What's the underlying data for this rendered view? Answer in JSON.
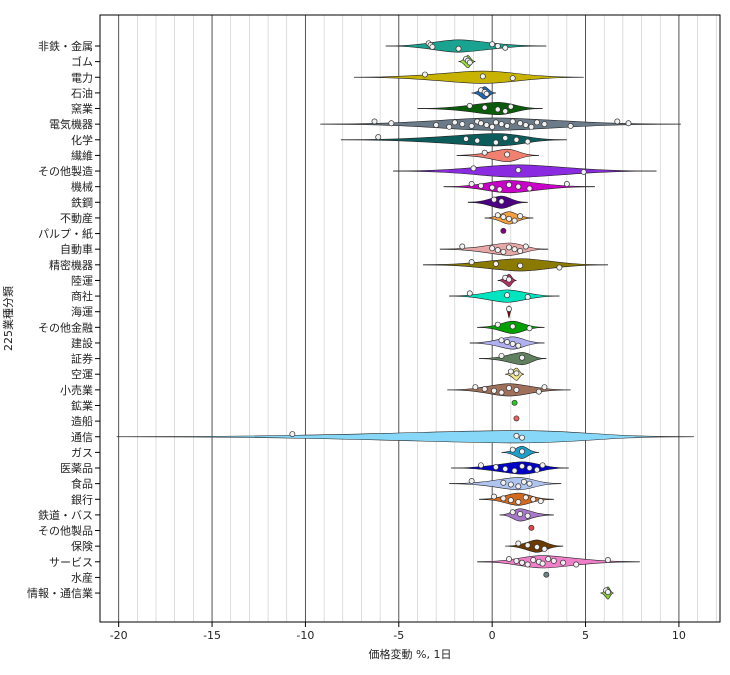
{
  "chart_data": {
    "type": "violin",
    "title": "",
    "xlabel": "価格変動 %, 1日",
    "ylabel": "225業種分類",
    "xlim": [
      -21,
      12.2
    ],
    "xticks": [
      -20,
      -15,
      -10,
      -5,
      0,
      5,
      10
    ],
    "minor_x_step": 1,
    "grid": "vertical",
    "series": [
      {
        "name": "非鉄・金属",
        "color": "#1aa391",
        "min": -5.7,
        "max": 2.9,
        "points": [
          -3.4,
          -3.3,
          -3.2,
          -1.8,
          0.0,
          0.3,
          0.7
        ]
      },
      {
        "name": "ゴム",
        "color": "#9be23a",
        "min": -1.8,
        "max": -0.9,
        "points": [
          -1.4,
          -1.3,
          -1.2
        ]
      },
      {
        "name": "電力",
        "color": "#c8b400",
        "min": -7.4,
        "max": 4.9,
        "points": [
          -3.6,
          -0.5,
          1.1
        ]
      },
      {
        "name": "石油",
        "color": "#2169b5",
        "min": -1.1,
        "max": 0.2,
        "points": [
          -0.6,
          -0.4,
          -0.3
        ]
      },
      {
        "name": "窯業",
        "color": "#0a5c0a",
        "min": -4.0,
        "max": 2.7,
        "points": [
          -1.2,
          -0.4,
          0.3,
          0.7,
          1.0
        ]
      },
      {
        "name": "電気機器",
        "color": "#6b7b8a",
        "min": -9.2,
        "max": 10.1,
        "points": [
          -6.3,
          -5.4,
          -3.0,
          -2.3,
          -2.0,
          -1.6,
          -1.1,
          -0.8,
          -0.6,
          -0.3,
          0.0,
          0.2,
          0.5,
          0.8,
          1.1,
          1.5,
          1.8,
          2.1,
          2.4,
          2.8,
          4.2,
          6.7,
          7.3
        ]
      },
      {
        "name": "化学",
        "color": "#0c5c5c",
        "min": -8.1,
        "max": 4.0,
        "points": [
          -6.1,
          -1.4,
          -0.8,
          0.2,
          0.7,
          1.3,
          1.9
        ]
      },
      {
        "name": "繊維",
        "color": "#f08070",
        "min": -1.9,
        "max": 2.5,
        "points": [
          -0.4,
          0.8
        ]
      },
      {
        "name": "その他製造",
        "color": "#8a2be2",
        "min": -5.3,
        "max": 8.8,
        "points": [
          -1.0,
          1.4,
          4.9
        ]
      },
      {
        "name": "機械",
        "color": "#c800c8",
        "min": -2.6,
        "max": 5.5,
        "points": [
          -1.1,
          -0.6,
          0.0,
          0.4,
          0.9,
          1.4,
          2.0,
          4.0
        ]
      },
      {
        "name": "鉄鋼",
        "color": "#4b0082",
        "min": -1.3,
        "max": 1.9,
        "points": [
          0.1,
          0.5
        ]
      },
      {
        "name": "不動産",
        "color": "#f4a040",
        "min": -0.4,
        "max": 2.2,
        "points": [
          0.3,
          0.6,
          0.9,
          1.2,
          1.5
        ]
      },
      {
        "name": "パルプ・紙",
        "color": "#800080",
        "min": 0.6,
        "max": 0.6,
        "points": [
          0.6
        ]
      },
      {
        "name": "自動車",
        "color": "#e8a8a8",
        "min": -2.8,
        "max": 3.0,
        "points": [
          -1.6,
          0.0,
          0.3,
          0.6,
          0.9,
          1.2,
          1.5,
          1.8
        ]
      },
      {
        "name": "精密機器",
        "color": "#8a7a00",
        "min": -3.7,
        "max": 6.2,
        "points": [
          -1.1,
          0.2,
          1.5,
          3.6
        ]
      },
      {
        "name": "陸運",
        "color": "#b03060",
        "min": 0.3,
        "max": 1.3,
        "points": [
          0.7,
          0.9
        ]
      },
      {
        "name": "商社",
        "color": "#00e5c0",
        "min": -2.3,
        "max": 3.6,
        "points": [
          -1.2,
          0.8,
          1.9
        ]
      },
      {
        "name": "海運",
        "color": "#8b0000",
        "min": 0.8,
        "max": 1.0,
        "points": [
          0.9
        ]
      },
      {
        "name": "その他金融",
        "color": "#00a000",
        "min": -0.8,
        "max": 2.8,
        "points": [
          0.3,
          1.1,
          2.0
        ]
      },
      {
        "name": "建設",
        "color": "#b0b0f0",
        "min": -1.2,
        "max": 2.8,
        "points": [
          0.5,
          0.8,
          1.1,
          1.4
        ]
      },
      {
        "name": "証券",
        "color": "#5f7f5f",
        "min": -0.7,
        "max": 2.9,
        "points": [
          0.5,
          1.6
        ]
      },
      {
        "name": "空運",
        "color": "#f0e68c",
        "min": 0.7,
        "max": 1.7,
        "points": [
          1.0,
          1.3
        ]
      },
      {
        "name": "小売業",
        "color": "#a0705a",
        "min": -2.4,
        "max": 4.2,
        "points": [
          -0.9,
          -0.4,
          0.1,
          0.5,
          0.9,
          1.3,
          2.5,
          2.8
        ]
      },
      {
        "name": "鉱業",
        "color": "#22cc22",
        "min": 1.2,
        "max": 1.2,
        "points": [
          1.2
        ]
      },
      {
        "name": "造船",
        "color": "#ee6060",
        "min": 1.3,
        "max": 1.3,
        "points": [
          1.3
        ]
      },
      {
        "name": "通信",
        "color": "#87d8f8",
        "min": -20.1,
        "max": 10.8,
        "points": [
          -10.7,
          1.3,
          1.6
        ]
      },
      {
        "name": "ガス",
        "color": "#1e9ec8",
        "min": 0.5,
        "max": 2.5,
        "points": [
          1.1,
          1.6
        ]
      },
      {
        "name": "医薬品",
        "color": "#0000c8",
        "min": -2.2,
        "max": 4.1,
        "points": [
          -0.6,
          0.2,
          0.7,
          1.2,
          1.6,
          2.0,
          2.4,
          2.7
        ]
      },
      {
        "name": "食品",
        "color": "#b0c4f0",
        "min": -2.3,
        "max": 3.7,
        "points": [
          -1.1,
          0.6,
          1.0,
          1.4,
          1.7,
          2.0
        ]
      },
      {
        "name": "銀行",
        "color": "#d2691e",
        "min": -0.7,
        "max": 3.3,
        "points": [
          0.1,
          0.6,
          1.0,
          1.4,
          1.8,
          2.2,
          2.6
        ]
      },
      {
        "name": "鉄道・バス",
        "color": "#a878c8",
        "min": 0.4,
        "max": 3.3,
        "points": [
          1.1,
          1.5,
          1.9
        ]
      },
      {
        "name": "その他製品",
        "color": "#e04848",
        "min": 2.1,
        "max": 2.1,
        "points": [
          2.1
        ]
      },
      {
        "name": "保険",
        "color": "#6b3a00",
        "min": 0.7,
        "max": 3.8,
        "points": [
          1.4,
          1.9,
          2.4,
          2.8
        ]
      },
      {
        "name": "サービス",
        "color": "#f07ec8",
        "min": -0.8,
        "max": 7.9,
        "points": [
          0.9,
          1.3,
          1.6,
          1.9,
          2.2,
          2.5,
          2.7,
          3.0,
          3.3,
          3.8,
          4.5,
          6.2
        ]
      },
      {
        "name": "水産",
        "color": "#6e8282",
        "min": 2.9,
        "max": 2.9,
        "points": [
          2.9
        ]
      },
      {
        "name": "情報・通信業",
        "color": "#88c840",
        "min": 5.8,
        "max": 6.5,
        "points": [
          6.1,
          6.2
        ]
      }
    ]
  }
}
